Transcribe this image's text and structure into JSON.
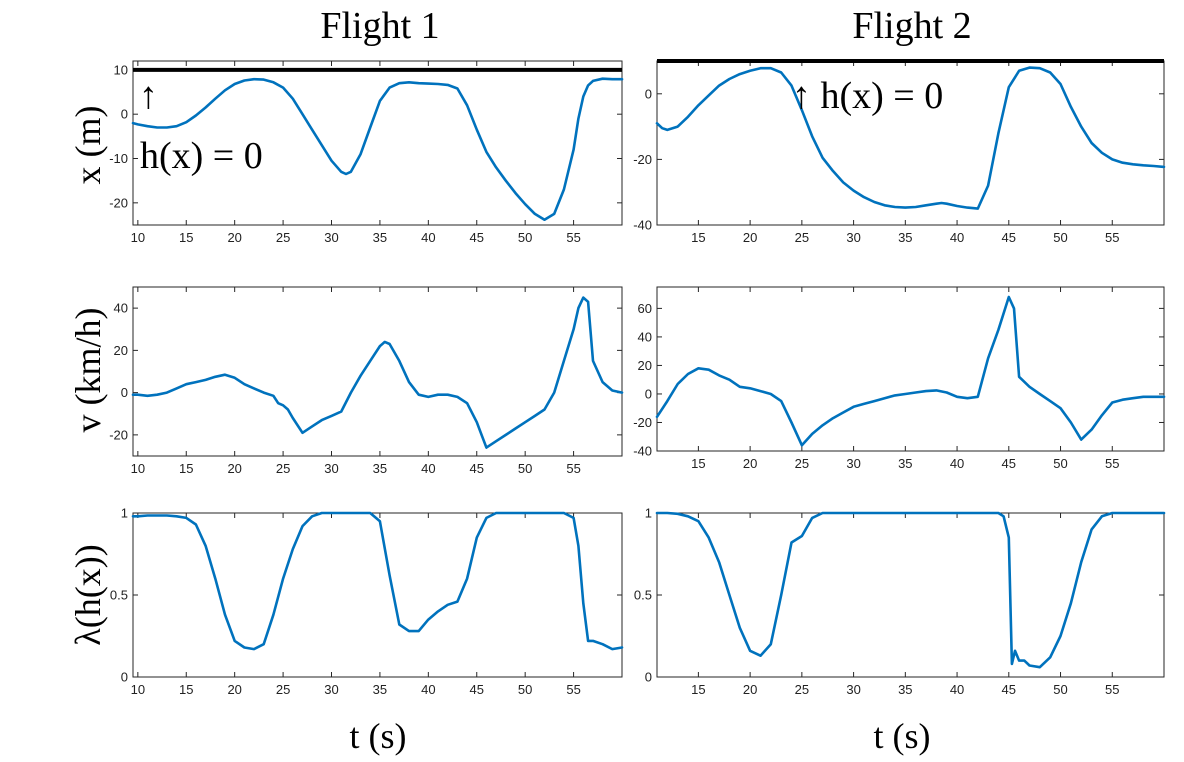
{
  "figure": {
    "columns": [
      "Flight 1",
      "Flight 2"
    ],
    "row_ylabels": [
      "x (m)",
      "v (km/h)",
      "λ(h(x))"
    ],
    "xlabel": "t (s)"
  },
  "annotations": {
    "flight1_arrow": "↑",
    "flight1_text": "h(x) = 0",
    "flight2_text": "↑ h(x) = 0"
  },
  "colors": {
    "series": "#0072bd",
    "constraint_line": "#000000"
  },
  "chart_data": [
    {
      "type": "line",
      "id": "flight1-x",
      "column": "Flight 1",
      "row": "x (m)",
      "xlim": [
        9.5,
        60
      ],
      "ylim": [
        -25,
        12
      ],
      "xticks": [
        10,
        15,
        20,
        25,
        30,
        35,
        40,
        45,
        50,
        55
      ],
      "yticks": [
        10,
        0,
        -10,
        -20
      ],
      "hline": 10,
      "x": [
        9.5,
        10,
        11,
        12,
        13,
        14,
        15,
        16,
        17,
        18,
        19,
        20,
        21,
        22,
        23,
        24,
        25,
        26,
        27,
        28,
        29,
        30,
        31,
        31.5,
        32,
        33,
        34,
        35,
        36,
        37,
        38,
        39,
        40,
        41,
        42,
        43,
        44,
        45,
        46,
        47,
        48,
        49,
        50,
        51,
        52,
        53,
        54,
        55,
        55.5,
        56,
        56.5,
        57,
        58,
        59,
        60
      ],
      "y": [
        -2,
        -2.3,
        -2.7,
        -3,
        -3,
        -2.7,
        -1.8,
        -0.3,
        1.5,
        3.5,
        5.4,
        6.8,
        7.6,
        7.9,
        7.8,
        7.2,
        6,
        3.5,
        0,
        -3.5,
        -7,
        -10.5,
        -13,
        -13.5,
        -13,
        -9,
        -3,
        3,
        6,
        7,
        7.2,
        7,
        6.9,
        6.8,
        6.6,
        5.8,
        2,
        -3.5,
        -8.5,
        -12,
        -15,
        -17.8,
        -20.3,
        -22.5,
        -23.8,
        -22.5,
        -17,
        -8,
        -1,
        4,
        6.5,
        7.5,
        8,
        7.9,
        7.9
      ]
    },
    {
      "type": "line",
      "id": "flight2-x",
      "column": "Flight 2",
      "row": "x (m)",
      "xlim": [
        11,
        60
      ],
      "ylim": [
        -40,
        10
      ],
      "xticks": [
        15,
        20,
        25,
        30,
        35,
        40,
        45,
        50,
        55
      ],
      "yticks": [
        0,
        -20,
        -40
      ],
      "hline": 10,
      "x": [
        11,
        11.5,
        12,
        13,
        14,
        15,
        16,
        17,
        18,
        19,
        20,
        21,
        22,
        23,
        24,
        25,
        26,
        27,
        28,
        29,
        30,
        31,
        32,
        33,
        34,
        35,
        36,
        37,
        38,
        38.5,
        39,
        40,
        41,
        42,
        43,
        44,
        45,
        46,
        47,
        48,
        49,
        50,
        51,
        52,
        53,
        54,
        55,
        56,
        57,
        58,
        59,
        60
      ],
      "y": [
        -9,
        -10.5,
        -11,
        -10,
        -7,
        -3.5,
        -0.5,
        2.5,
        4.5,
        6,
        7,
        7.8,
        7.8,
        6.5,
        2.5,
        -5,
        -13,
        -19.5,
        -23.5,
        -27,
        -29.5,
        -31.5,
        -33,
        -34,
        -34.5,
        -34.7,
        -34.5,
        -34,
        -33.5,
        -33.3,
        -33.5,
        -34.2,
        -34.7,
        -35,
        -28,
        -12,
        2,
        7,
        8,
        7.8,
        6.5,
        3,
        -4,
        -10,
        -15,
        -18,
        -20,
        -21,
        -21.5,
        -21.8,
        -22,
        -22.3
      ]
    },
    {
      "type": "line",
      "id": "flight1-v",
      "column": "Flight 1",
      "row": "v (km/h)",
      "xlim": [
        9.5,
        60
      ],
      "ylim": [
        -30,
        50
      ],
      "xticks": [
        10,
        15,
        20,
        25,
        30,
        35,
        40,
        45,
        50,
        55
      ],
      "yticks": [
        40,
        20,
        0,
        -20
      ],
      "x": [
        9.5,
        10,
        11,
        12,
        13,
        14,
        15,
        16,
        17,
        18,
        19,
        20,
        21,
        22,
        23,
        24,
        24.5,
        25,
        25.5,
        26,
        27,
        28,
        29,
        30,
        31,
        32,
        33,
        34,
        35,
        35.5,
        36,
        37,
        38,
        39,
        40,
        41,
        42,
        43,
        44,
        45,
        45.5,
        46,
        47,
        48,
        49,
        50,
        51,
        52,
        53,
        54,
        55,
        55.5,
        56,
        56.5,
        57,
        58,
        59,
        60
      ],
      "y": [
        -1,
        -1,
        -1.5,
        -1,
        0,
        2,
        4,
        5,
        6,
        7.5,
        8.5,
        7,
        4,
        2,
        0,
        -1.5,
        -5,
        -6,
        -8,
        -12,
        -19,
        -16,
        -13,
        -11,
        -9,
        0,
        8,
        15,
        22,
        24,
        23,
        15,
        5,
        -1,
        -2,
        -1,
        -1,
        -2,
        -5,
        -14,
        -20,
        -26,
        -23,
        -20,
        -17,
        -14,
        -11,
        -8,
        0,
        15,
        30,
        40,
        45,
        43,
        15,
        5,
        1,
        0
      ]
    },
    {
      "type": "line",
      "id": "flight2-v",
      "column": "Flight 2",
      "row": "v (km/h)",
      "xlim": [
        11,
        60
      ],
      "ylim": [
        -40,
        75
      ],
      "xticks": [
        15,
        20,
        25,
        30,
        35,
        40,
        45,
        50,
        55
      ],
      "yticks": [
        60,
        40,
        20,
        0,
        -20,
        -40
      ],
      "x": [
        11,
        12,
        13,
        14,
        15,
        16,
        17,
        18,
        19,
        20,
        21,
        22,
        23,
        24,
        25,
        26,
        27,
        28,
        29,
        30,
        31,
        32,
        33,
        34,
        35,
        36,
        37,
        38,
        39,
        40,
        41,
        42,
        43,
        44,
        45,
        45.5,
        46,
        47,
        48,
        49,
        50,
        51,
        52,
        53,
        54,
        55,
        56,
        57,
        58,
        59,
        60
      ],
      "y": [
        -16,
        -5,
        7,
        14,
        18,
        17,
        13,
        10,
        5,
        4,
        2,
        0,
        -5,
        -20,
        -36,
        -28,
        -22,
        -17,
        -13,
        -9,
        -7,
        -5,
        -3,
        -1,
        0,
        1,
        2,
        2.5,
        1,
        -2,
        -3,
        -2,
        25,
        45,
        68,
        60,
        12,
        5,
        0,
        -5,
        -10,
        -20,
        -32,
        -25,
        -15,
        -6,
        -4,
        -3,
        -2,
        -2,
        -2
      ]
    },
    {
      "type": "line",
      "id": "flight1-lambda",
      "column": "Flight 1",
      "row": "λ(h(x))",
      "xlim": [
        9.5,
        60
      ],
      "ylim": [
        0,
        1
      ],
      "xticks": [
        10,
        15,
        20,
        25,
        30,
        35,
        40,
        45,
        50,
        55
      ],
      "yticks": [
        1,
        0.5,
        0
      ],
      "x": [
        9.5,
        10,
        11,
        12,
        13,
        14,
        15,
        16,
        17,
        18,
        19,
        20,
        21,
        22,
        23,
        24,
        25,
        26,
        27,
        28,
        29,
        30,
        31,
        32,
        33,
        34,
        35,
        36,
        37,
        38,
        39,
        40,
        41,
        42,
        43,
        44,
        45,
        46,
        47,
        48,
        49,
        50,
        51,
        52,
        53,
        54,
        55,
        55.5,
        56,
        56.5,
        57,
        58,
        59,
        60
      ],
      "y": [
        0.98,
        0.98,
        0.985,
        0.985,
        0.985,
        0.98,
        0.97,
        0.93,
        0.8,
        0.6,
        0.38,
        0.22,
        0.18,
        0.17,
        0.2,
        0.38,
        0.6,
        0.78,
        0.92,
        0.98,
        1,
        1,
        1,
        1,
        1,
        1,
        0.95,
        0.62,
        0.32,
        0.28,
        0.28,
        0.35,
        0.4,
        0.44,
        0.46,
        0.6,
        0.85,
        0.97,
        1,
        1,
        1,
        1,
        1,
        1,
        1,
        1,
        0.97,
        0.8,
        0.45,
        0.22,
        0.22,
        0.2,
        0.17,
        0.18
      ]
    },
    {
      "type": "line",
      "id": "flight2-lambda",
      "column": "Flight 2",
      "row": "λ(h(x))",
      "xlim": [
        11,
        60
      ],
      "ylim": [
        0,
        1
      ],
      "xticks": [
        15,
        20,
        25,
        30,
        35,
        40,
        45,
        50,
        55
      ],
      "yticks": [
        1,
        0.5,
        0
      ],
      "x": [
        11,
        12,
        13,
        14,
        15,
        16,
        17,
        18,
        19,
        20,
        21,
        22,
        23,
        24,
        25,
        26,
        27,
        28,
        29,
        30,
        31,
        32,
        33,
        34,
        35,
        36,
        37,
        38,
        39,
        40,
        41,
        42,
        43,
        44,
        44.5,
        45,
        45.3,
        45.6,
        46,
        46.5,
        47,
        48,
        49,
        50,
        51,
        52,
        53,
        54,
        55,
        56,
        57,
        58,
        59,
        60
      ],
      "y": [
        1,
        1,
        0.995,
        0.98,
        0.95,
        0.85,
        0.7,
        0.5,
        0.3,
        0.16,
        0.13,
        0.2,
        0.5,
        0.82,
        0.86,
        0.97,
        1,
        1,
        1,
        1,
        1,
        1,
        1,
        1,
        1,
        1,
        1,
        1,
        1,
        1,
        1,
        1,
        1,
        1,
        0.98,
        0.85,
        0.08,
        0.16,
        0.1,
        0.1,
        0.07,
        0.06,
        0.12,
        0.25,
        0.45,
        0.7,
        0.9,
        0.98,
        1,
        1,
        1,
        1,
        1,
        1
      ]
    }
  ]
}
